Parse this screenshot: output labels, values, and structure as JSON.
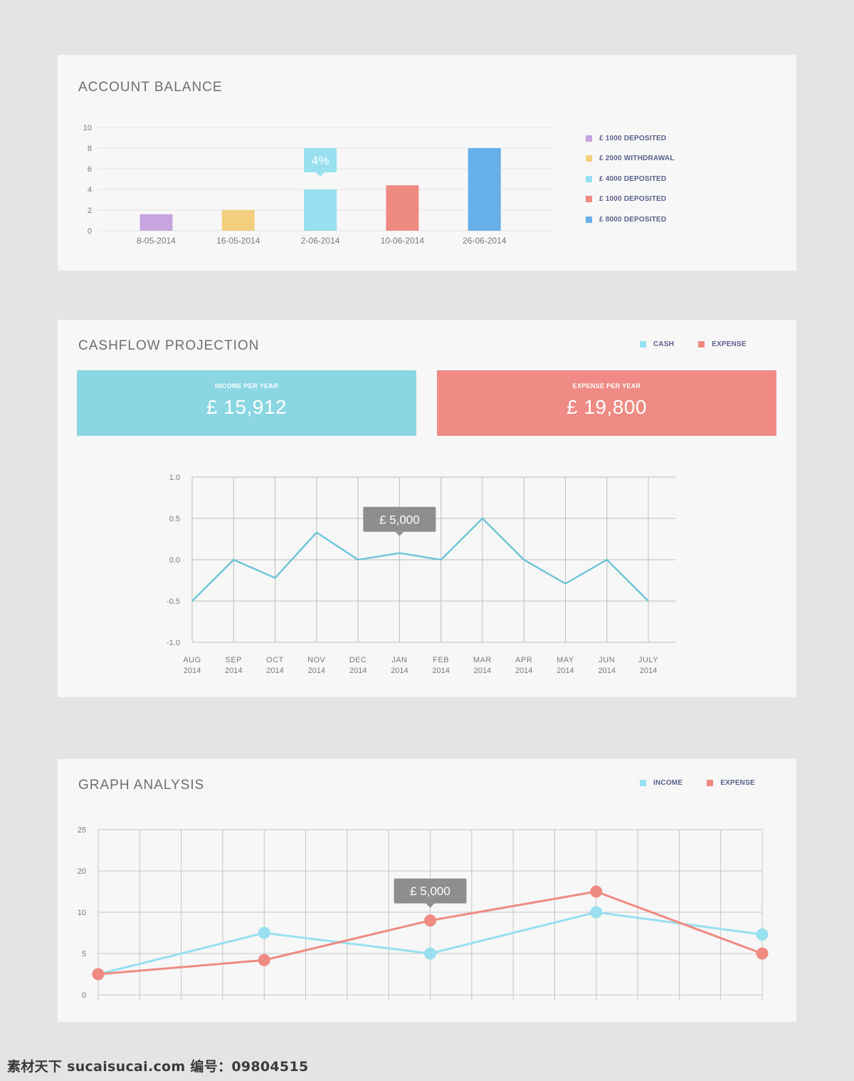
{
  "account_balance": {
    "title": "ACCOUNT BALANCE",
    "colors": {
      "purple": "#c7a5de",
      "yellow": "#f2cf7e",
      "cyan": "#98e0ef",
      "coral": "#ef8a82",
      "blue": "#66afe8"
    },
    "legend": [
      {
        "label": "£ 1000 DEPOSITED",
        "color": "#c7a5de"
      },
      {
        "label": "£ 2000 WITHDRAWAL",
        "color": "#f2cf7e"
      },
      {
        "label": "£ 4000 DEPOSITED",
        "color": "#98e0ef"
      },
      {
        "label": "£ 1000 DEPOSITED",
        "color": "#ef8a82"
      },
      {
        "label": "£ 8000 DEPOSITED",
        "color": "#66afe8"
      }
    ]
  },
  "cashflow": {
    "title": "CASHFLOW PROJECTION",
    "legend": [
      {
        "label": "CASH",
        "color": "#98e0ef"
      },
      {
        "label": "EXPENSE",
        "color": "#ef8a82"
      }
    ],
    "income_label": "INCOME PER YEAR",
    "income_value": "£ 15,912",
    "expense_label": "EXPENSE PER YEAR",
    "expense_value": "£ 19,800"
  },
  "graph_analysis": {
    "title": "GRAPH ANALYSIS",
    "legend": [
      {
        "label": "INCOME",
        "color": "#98e0ef"
      },
      {
        "label": "EXPENSE",
        "color": "#ef8a82"
      }
    ]
  },
  "footer": {
    "watermark": "素材天下 sucaisucai.com  编号：09804515"
  },
  "chart_data": [
    {
      "id": "account-balance",
      "type": "bar",
      "categories": [
        "8-05-2014",
        "16-05-2014",
        "2-06-2014",
        "10-06-2014",
        "26-06-2014"
      ],
      "values": [
        1.6,
        2.0,
        4.0,
        4.4,
        8.0
      ],
      "colors": [
        "#c7a5de",
        "#f2cf7e",
        "#98e0ef",
        "#ef8a82",
        "#66afe8"
      ],
      "ylim": [
        0,
        10
      ],
      "yticks": [
        0,
        2,
        4,
        6,
        8,
        10
      ],
      "grid": true,
      "legend_position": "right",
      "annotation": {
        "category": "2-06-2014",
        "text": "4%",
        "color": "#98e0ef"
      }
    },
    {
      "id": "cashflow-projection",
      "type": "line",
      "categories": [
        "AUG 2014",
        "SEP 2014",
        "OCT 2014",
        "NOV 2014",
        "DEC 2014",
        "JAN 2014",
        "FEB 2014",
        "MAR 2014",
        "APR 2014",
        "MAY 2014",
        "JUN 2014",
        "JULY 2014"
      ],
      "series": [
        {
          "values": [
            -0.5,
            0.0,
            -0.22,
            0.33,
            0.0,
            0.08,
            0.0,
            0.5,
            0.0,
            -0.29,
            0.0,
            -0.5
          ],
          "color": "#6cc4d8"
        }
      ],
      "ylim": [
        -1.0,
        1.0
      ],
      "yticks": [
        "1.0",
        "0.5",
        "0.0",
        "-0.5",
        "-1.0"
      ],
      "grid": true,
      "annotation": {
        "category": "JAN 2014",
        "text": "£ 5,000",
        "color": "#8e8e8e"
      }
    },
    {
      "id": "graph-analysis",
      "type": "line",
      "x": [
        0,
        4,
        8,
        12,
        16
      ],
      "xlim": [
        0,
        16
      ],
      "series": [
        {
          "name": "INCOME",
          "values": [
            2.5,
            7.5,
            5.0,
            10.0,
            7.3
          ],
          "color": "#98e0ef"
        },
        {
          "name": "EXPENSE",
          "values": [
            2.5,
            4.2,
            9.0,
            15.0,
            5.0
          ],
          "color": "#ef8a82"
        }
      ],
      "yticks": [
        0,
        5,
        10,
        20,
        25
      ],
      "grid": true,
      "legend_position": "top-right",
      "annotation": {
        "series": "EXPENSE",
        "x": 8,
        "text": "£ 5,000",
        "color": "#8e8e8e"
      }
    }
  ]
}
